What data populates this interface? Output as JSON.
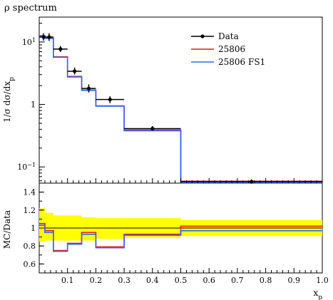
{
  "chart_data": {
    "type": "line",
    "title": "ρ spectrum",
    "xlabel": "x_p",
    "colors": {
      "data": "#000000",
      "mc1": "#e41a1c",
      "mc2": "#3366ff",
      "band": "#ffff00"
    },
    "top_panel": {
      "ylabel": "1/σ dσ/dx_p",
      "yscale": "log",
      "ylim": [
        0.055,
        25
      ],
      "yticks": [
        {
          "value": 10,
          "base": "10",
          "exp": "1"
        },
        {
          "value": 1,
          "base": "1",
          "exp": ""
        },
        {
          "value": 0.1,
          "base": "10",
          "exp": "−1"
        }
      ],
      "data": {
        "name": "Data",
        "points": [
          {
            "x": 0.015,
            "xlo": 0.0,
            "xhi": 0.02,
            "y": 12.0,
            "ylo": 10.5,
            "yhi": 13.8
          },
          {
            "x": 0.035,
            "xlo": 0.02,
            "xhi": 0.05,
            "y": 12.0,
            "ylo": 10.4,
            "yhi": 13.8
          },
          {
            "x": 0.075,
            "xlo": 0.05,
            "xhi": 0.1,
            "y": 7.7,
            "ylo": 6.9,
            "yhi": 8.6
          },
          {
            "x": 0.125,
            "xlo": 0.1,
            "xhi": 0.15,
            "y": 3.4,
            "ylo": 3.0,
            "yhi": 3.9
          },
          {
            "x": 0.175,
            "xlo": 0.15,
            "xhi": 0.2,
            "y": 1.8,
            "ylo": 1.55,
            "yhi": 2.1
          },
          {
            "x": 0.25,
            "xlo": 0.2,
            "xhi": 0.3,
            "y": 1.2,
            "ylo": 1.05,
            "yhi": 1.35
          },
          {
            "x": 0.4,
            "xlo": 0.3,
            "xhi": 0.5,
            "y": 0.41,
            "ylo": 0.38,
            "yhi": 0.45
          },
          {
            "x": 0.75,
            "xlo": 0.5,
            "xhi": 1.0,
            "y": 0.058,
            "ylo": 0.054,
            "yhi": 0.063
          }
        ]
      },
      "series": [
        {
          "name": "25806",
          "color": "#e41a1c",
          "bin_edges": [
            0.0,
            0.02,
            0.05,
            0.1,
            0.15,
            0.2,
            0.3,
            0.5,
            1.0
          ],
          "values": [
            12.6,
            11.6,
            5.8,
            2.8,
            1.7,
            0.95,
            0.39,
            0.059
          ]
        },
        {
          "name": "25806 FS1",
          "color": "#3366ff",
          "bin_edges": [
            0.0,
            0.02,
            0.05,
            0.1,
            0.15,
            0.2,
            0.3,
            0.5,
            1.0
          ],
          "values": [
            12.4,
            11.4,
            5.7,
            2.75,
            1.68,
            0.94,
            0.38,
            0.056
          ]
        }
      ]
    },
    "ratio_panel": {
      "ylabel": "MC/Data",
      "ylim": [
        0.5,
        1.5
      ],
      "yticks": [
        "0.6",
        "0.8",
        "1",
        "1.2",
        "1.4"
      ],
      "band_edges": [
        0.0,
        0.02,
        0.05,
        0.1,
        0.15,
        0.2,
        0.3,
        0.5,
        1.0
      ],
      "band_lo": [
        0.85,
        0.86,
        0.86,
        0.86,
        0.86,
        0.88,
        0.89,
        0.91
      ],
      "band_hi": [
        1.22,
        1.17,
        1.14,
        1.14,
        1.12,
        1.11,
        1.11,
        1.09
      ],
      "series": [
        {
          "name": "25806",
          "values": [
            1.05,
            0.97,
            0.75,
            0.83,
            0.95,
            0.79,
            0.93,
            1.02
          ]
        },
        {
          "name": "25806 FS1",
          "values": [
            1.03,
            0.95,
            0.74,
            0.82,
            0.93,
            0.78,
            0.92,
            0.97
          ]
        }
      ]
    },
    "xlim": [
      0.0,
      1.0
    ],
    "xticks": [
      "0.1",
      "0.2",
      "0.3",
      "0.4",
      "0.5",
      "0.6",
      "0.7",
      "0.8",
      "0.9",
      "1.0"
    ],
    "legend_position": "top-right",
    "grid": false
  }
}
